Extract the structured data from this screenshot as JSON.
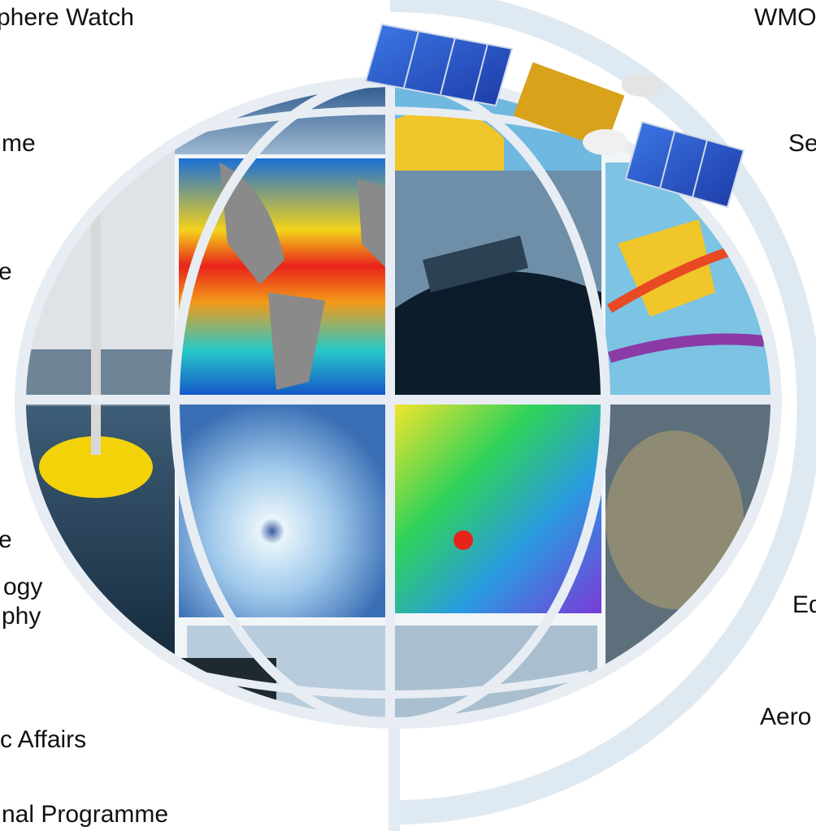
{
  "labels": {
    "left": [
      "phere Watch",
      "me",
      "e",
      "e",
      "ogy",
      "phy",
      "c Affairs",
      "nal Programme"
    ],
    "right": [
      "WMO",
      "Se",
      "Ed",
      "Aero"
    ]
  },
  "colors": {
    "arc": "#dfe9f1",
    "globe_frame": "#e7edf3",
    "ocean_warm": "#e8231b",
    "ocean_cool": "#1450c8",
    "land": "#8a8a8a",
    "sky": "#24558f",
    "sea": "#2b4a63",
    "buoy": "#f4d20a",
    "cyclone": "#cfe6f5",
    "wind_field": "#27c85a",
    "solar_panel": "#2a56c8",
    "satellite_body": "#d8a21a"
  },
  "icons": [
    "globe-collage-illustration",
    "satellite-icon"
  ]
}
